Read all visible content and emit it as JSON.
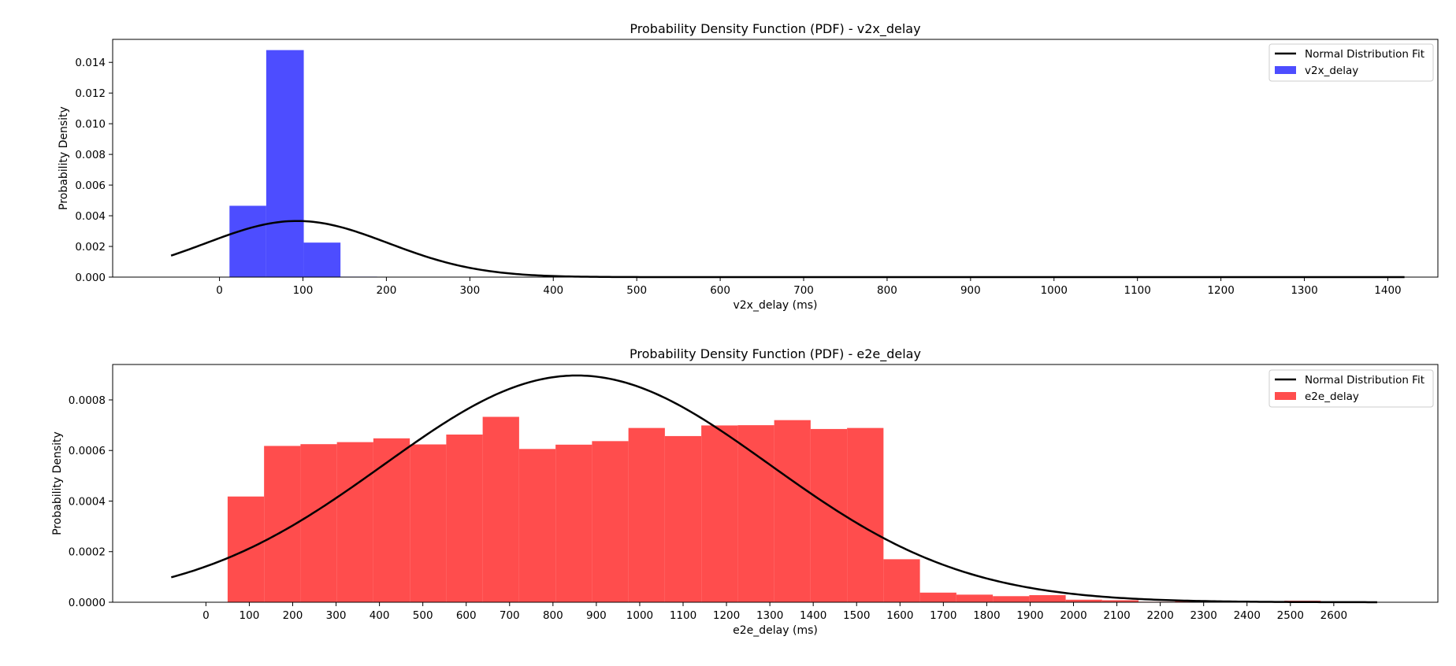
{
  "chart_data": [
    {
      "type": "bar",
      "title": "Probability Density Function (PDF) - v2x_delay",
      "xlabel": "v2x_delay (ms)",
      "ylabel": "Probability Density",
      "xlim": [
        -128,
        1460
      ],
      "ylim": [
        0,
        0.0155
      ],
      "xticks": [
        0,
        100,
        200,
        300,
        400,
        500,
        600,
        700,
        800,
        900,
        1000,
        1100,
        1200,
        1300,
        1400
      ],
      "xtick_labels": [
        "0",
        "100",
        "200",
        "300",
        "400",
        "500",
        "600",
        "700",
        "800",
        "900",
        "1000",
        "1100",
        "1200",
        "1300",
        "1400"
      ],
      "yticks": [
        0,
        0.002,
        0.004,
        0.006,
        0.008,
        0.01,
        0.012,
        0.014
      ],
      "ytick_labels": [
        "0.000",
        "0.002",
        "0.004",
        "0.006",
        "0.008",
        "0.010",
        "0.012",
        "0.014"
      ],
      "grid": false,
      "legend_position": "top-right",
      "histogram": {
        "name": "v2x_delay",
        "color": "#4d4dff",
        "bin_edges": [
          12,
          56,
          101,
          145,
          189,
          234,
          278,
          322,
          367,
          411,
          455
        ],
        "densities": [
          0.00465,
          0.0148,
          0.00225,
          3e-05,
          2e-05,
          1e-05,
          1e-05,
          5e-06,
          5e-06,
          2e-06
        ]
      },
      "fit": {
        "name": "Normal Distribution Fit",
        "color": "#000000",
        "mean": 93,
        "std": 109,
        "x_range": [
          -58,
          1420
        ]
      }
    },
    {
      "type": "bar",
      "title": "Probability Density Function (PDF) - e2e_delay",
      "xlabel": "e2e_delay (ms)",
      "ylabel": "Probability Density",
      "xlim": [
        -215,
        2840
      ],
      "ylim": [
        0,
        0.00094
      ],
      "xticks": [
        0,
        100,
        200,
        300,
        400,
        500,
        600,
        700,
        800,
        900,
        1000,
        1100,
        1200,
        1300,
        1400,
        1500,
        1600,
        1700,
        1800,
        1900,
        2000,
        2100,
        2200,
        2300,
        2400,
        2500,
        2600
      ],
      "xtick_labels": [
        "0",
        "100",
        "200",
        "300",
        "400",
        "500",
        "600",
        "700",
        "800",
        "900",
        "1000",
        "1100",
        "1200",
        "1300",
        "1400",
        "1500",
        "1600",
        "1700",
        "1800",
        "1900",
        "2000",
        "2100",
        "2200",
        "2300",
        "2400",
        "2500",
        "2600"
      ],
      "yticks": [
        0,
        0.0002,
        0.0004,
        0.0006,
        0.0008
      ],
      "ytick_labels": [
        "0.0000",
        "0.0002",
        "0.0004",
        "0.0006",
        "0.0008"
      ],
      "grid": false,
      "legend_position": "top-right",
      "histogram": {
        "name": "e2e_delay",
        "color": "#ff4d4d",
        "bin_edges": [
          50,
          134,
          218,
          302,
          386,
          470,
          554,
          638,
          722,
          806,
          890,
          974,
          1058,
          1142,
          1226,
          1310,
          1394,
          1478,
          1562,
          1646,
          1730,
          1814,
          1898,
          1982,
          2066,
          2150,
          2234,
          2318,
          2402,
          2486,
          2570
        ],
        "densities": [
          0.000418,
          0.000618,
          0.000625,
          0.000633,
          0.000648,
          0.000624,
          0.000663,
          0.000733,
          0.000606,
          0.000623,
          0.000637,
          0.000689,
          0.000657,
          0.000699,
          0.0007,
          0.00072,
          0.000685,
          0.000689,
          0.00017,
          3.8e-05,
          3e-05,
          2.4e-05,
          2.8e-05,
          1e-05,
          8e-06,
          2e-06,
          4e-06,
          2e-06,
          2e-06,
          6e-06
        ]
      },
      "fit": {
        "name": "Normal Distribution Fit",
        "color": "#000000",
        "mean": 855,
        "std": 445,
        "x_range": [
          -80,
          2700
        ]
      }
    }
  ]
}
